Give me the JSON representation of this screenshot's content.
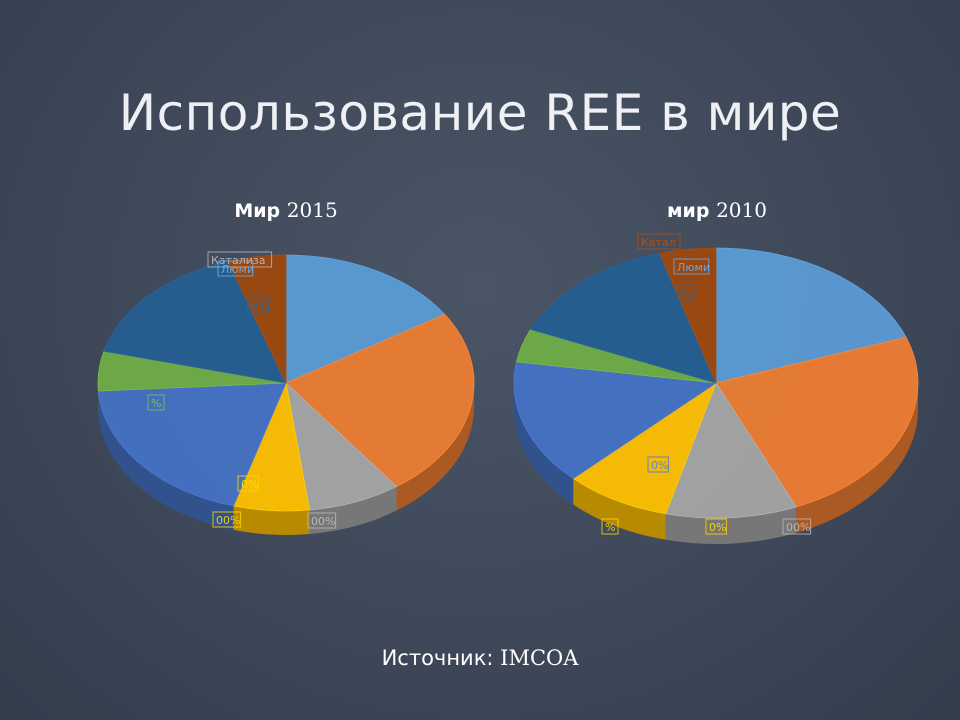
{
  "slide": {
    "title": "Использование REE в мире",
    "source_label": "Источник:",
    "source_org": "IMCOA"
  },
  "chart_data": [
    {
      "type": "pie",
      "title_word": "Мир",
      "title_year": "2015",
      "slices": [
        {
          "name": "",
          "value": 16,
          "color": "#5b9bd5"
        },
        {
          "name": "",
          "value": 24,
          "color": "#ed7d31"
        },
        {
          "name": "",
          "value": 8,
          "color": "#a5a5a5"
        },
        {
          "name": "",
          "value": 6.5,
          "color": "#ffc000"
        },
        {
          "name": "",
          "value": 19.5,
          "color": "#4472c4"
        },
        {
          "name": "",
          "value": 5,
          "color": "#70ad47"
        },
        {
          "name": "",
          "value": 16,
          "color": "#255e91"
        },
        {
          "name": "",
          "value": 5,
          "color": "#9e480e"
        }
      ],
      "visible_labels": [
        "Катализа",
        "Люми",
        "0%",
        "%",
        "0%",
        "00%",
        "00%"
      ]
    },
    {
      "type": "pie",
      "title_word": "мир",
      "title_year": "2010",
      "slices": [
        {
          "name": "",
          "value": 19.5,
          "color": "#5b9bd5"
        },
        {
          "name": "",
          "value": 24,
          "color": "#ed7d31"
        },
        {
          "name": "",
          "value": 10.5,
          "color": "#a5a5a5"
        },
        {
          "name": "",
          "value": 8.5,
          "color": "#ffc000"
        },
        {
          "name": "",
          "value": 15,
          "color": "#4472c4"
        },
        {
          "name": "",
          "value": 4,
          "color": "#70ad47"
        },
        {
          "name": "",
          "value": 14,
          "color": "#255e91"
        },
        {
          "name": "",
          "value": 4.5,
          "color": "#9e480e"
        }
      ],
      "visible_labels": [
        "Катал",
        "Люми",
        "%",
        "0%",
        "%",
        "0%",
        "00%"
      ]
    }
  ]
}
